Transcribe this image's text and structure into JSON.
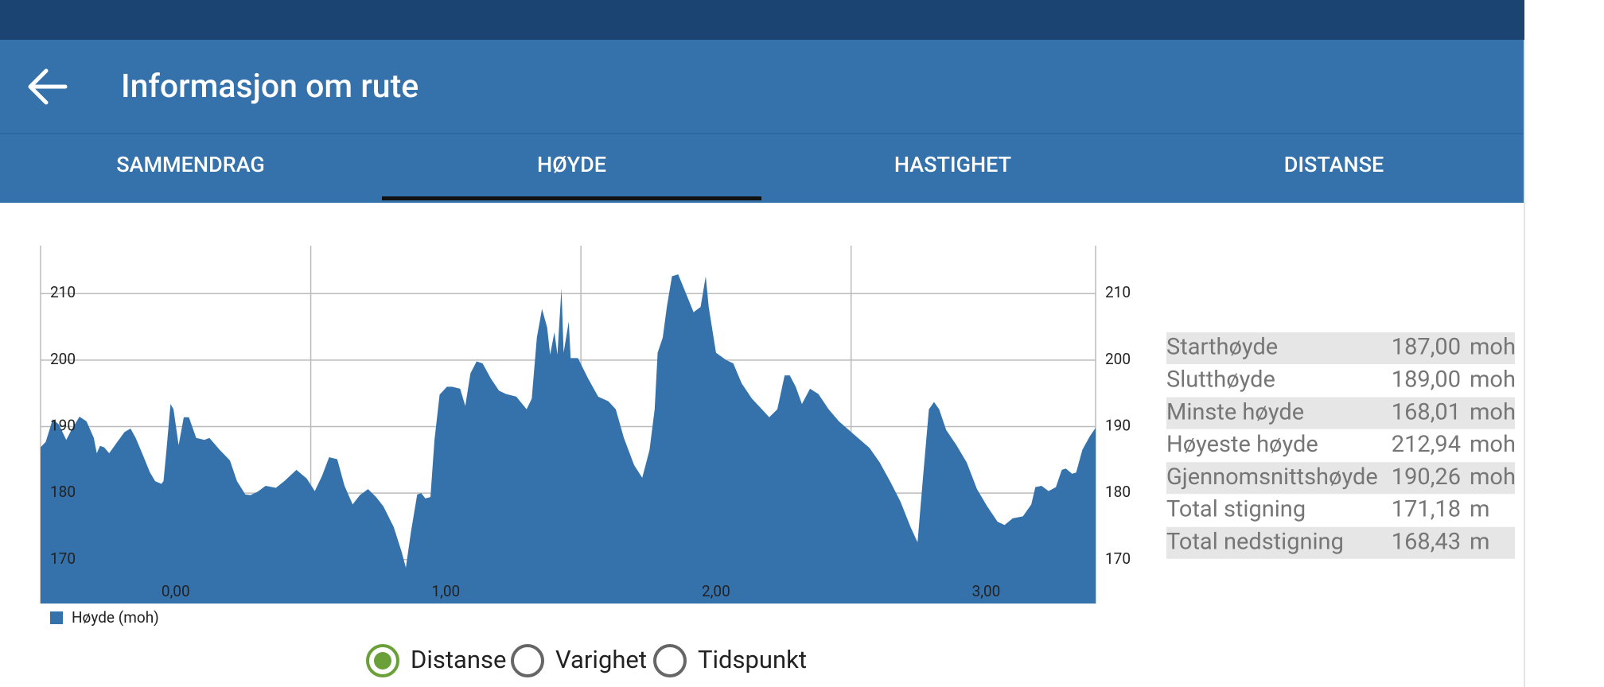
{
  "header": {
    "title": "Informasjon om rute"
  },
  "tabs": [
    "SAMMENDRAG",
    "HØYDE",
    "HASTIGHET",
    "DISTANSE"
  ],
  "selected_tab": 1,
  "chart_data": {
    "type": "area",
    "x": [
      -0.5,
      -0.481,
      -0.455,
      -0.432,
      -0.405,
      -0.386,
      -0.356,
      -0.33,
      -0.303,
      -0.292,
      -0.28,
      -0.265,
      -0.246,
      -0.216,
      -0.189,
      -0.167,
      -0.148,
      -0.121,
      -0.095,
      -0.076,
      -0.053,
      -0.045,
      -0.034,
      -0.019,
      -0.008,
      0.011,
      0.03,
      0.049,
      0.076,
      0.106,
      0.125,
      0.163,
      0.201,
      0.227,
      0.258,
      0.277,
      0.303,
      0.333,
      0.371,
      0.402,
      0.447,
      0.485,
      0.515,
      0.542,
      0.568,
      0.598,
      0.625,
      0.655,
      0.682,
      0.712,
      0.742,
      0.769,
      0.807,
      0.837,
      0.852,
      0.871,
      0.894,
      0.909,
      0.924,
      0.943,
      0.958,
      0.977,
      1.004,
      1.023,
      1.053,
      1.072,
      1.091,
      1.114,
      1.136,
      1.167,
      1.197,
      1.223,
      1.261,
      1.299,
      1.318,
      1.337,
      1.356,
      1.375,
      1.386,
      1.402,
      1.413,
      1.428,
      1.436,
      1.455,
      1.462,
      1.489,
      1.527,
      1.564,
      1.602,
      1.629,
      1.659,
      1.697,
      1.727,
      1.754,
      1.773,
      1.784,
      1.803,
      1.818,
      1.837,
      1.86,
      1.894,
      1.917,
      1.943,
      1.962,
      1.973,
      2.0,
      2.038,
      2.064,
      2.095,
      2.133,
      2.17,
      2.197,
      2.227,
      2.254,
      2.273,
      2.295,
      2.318,
      2.348,
      2.379,
      2.417,
      2.455,
      2.511,
      2.568,
      2.606,
      2.644,
      2.682,
      2.72,
      2.746,
      2.765,
      2.788,
      2.807,
      2.826,
      2.852,
      2.89,
      2.928,
      2.966,
      3.004,
      3.042,
      3.068,
      3.098,
      3.136,
      3.167,
      3.182,
      3.205,
      3.231,
      3.258,
      3.28,
      3.295,
      3.318,
      3.333,
      3.356,
      3.383,
      3.405
    ],
    "series": [
      {
        "name": "Høyde (moh)",
        "color": "#3572ab",
        "values": [
          186.9,
          187.7,
          191.1,
          190.3,
          188.0,
          189.5,
          191.5,
          190.8,
          188.3,
          186.0,
          187.1,
          186.9,
          186.0,
          187.7,
          189.2,
          189.7,
          188.3,
          185.7,
          183.1,
          181.8,
          181.4,
          181.8,
          186.5,
          193.4,
          192.6,
          187.2,
          191.4,
          191.4,
          188.3,
          188.0,
          188.3,
          186.5,
          184.9,
          181.8,
          179.8,
          179.7,
          180.2,
          181.1,
          180.8,
          181.8,
          183.5,
          182.2,
          180.3,
          182.6,
          185.4,
          185.1,
          181.1,
          178.3,
          179.7,
          180.6,
          179.4,
          178.0,
          174.9,
          171.1,
          168.8,
          174.2,
          179.8,
          180.0,
          179.2,
          179.4,
          188.0,
          194.8,
          196.0,
          196.0,
          195.7,
          193.1,
          198.0,
          199.8,
          199.5,
          197.2,
          195.4,
          194.9,
          194.5,
          192.6,
          194.2,
          203.4,
          207.7,
          204.9,
          200.8,
          204.2,
          200.8,
          210.8,
          201.1,
          205.8,
          200.3,
          200.3,
          197.2,
          194.5,
          193.8,
          192.6,
          188.3,
          184.2,
          182.3,
          186.5,
          192.6,
          201.1,
          203.4,
          208.0,
          212.6,
          212.9,
          209.5,
          207.2,
          208.0,
          212.6,
          208.0,
          201.1,
          200.0,
          199.5,
          196.5,
          194.2,
          192.6,
          191.4,
          192.6,
          197.7,
          197.7,
          196.0,
          193.4,
          195.7,
          194.9,
          192.6,
          190.8,
          188.8,
          186.8,
          184.6,
          181.8,
          178.8,
          174.9,
          172.6,
          181.8,
          192.6,
          193.7,
          192.6,
          189.5,
          187.2,
          184.6,
          180.6,
          178.0,
          175.7,
          175.2,
          176.2,
          176.5,
          178.3,
          180.9,
          181.1,
          180.3,
          180.9,
          183.5,
          183.7,
          182.9,
          183.1,
          186.5,
          188.5,
          189.8
        ]
      }
    ],
    "xlim": [
      -0.5,
      3.405
    ],
    "ylim": [
      163.4,
      217.2
    ],
    "xticks": [
      {
        "value": 0,
        "label": "0,00"
      },
      {
        "value": 1,
        "label": "1,00"
      },
      {
        "value": 2,
        "label": "2,00"
      },
      {
        "value": 3,
        "label": "3,00"
      }
    ],
    "xgrid": [
      -0.5,
      0.5,
      1.5,
      2.5
    ],
    "yticks": [
      170,
      180,
      190,
      200,
      210
    ],
    "grid": true
  },
  "stats": [
    {
      "label": "Starthøyde",
      "value": "187,00",
      "unit": "moh"
    },
    {
      "label": "Slutthøyde",
      "value": "189,00",
      "unit": "moh"
    },
    {
      "label": "Minste høyde",
      "value": "168,01",
      "unit": "moh"
    },
    {
      "label": "Høyeste høyde",
      "value": "212,94",
      "unit": "moh"
    },
    {
      "label": "Gjennomsnittshøyde",
      "value": "190,26",
      "unit": "moh"
    },
    {
      "label": "Total stigning",
      "value": "171,18",
      "unit": "m"
    },
    {
      "label": "Total nedstigning",
      "value": "168,43",
      "unit": "m"
    }
  ],
  "axis_options": {
    "options": [
      "Distanse",
      "Varighet",
      "Tidspunkt"
    ],
    "selected": 0
  }
}
